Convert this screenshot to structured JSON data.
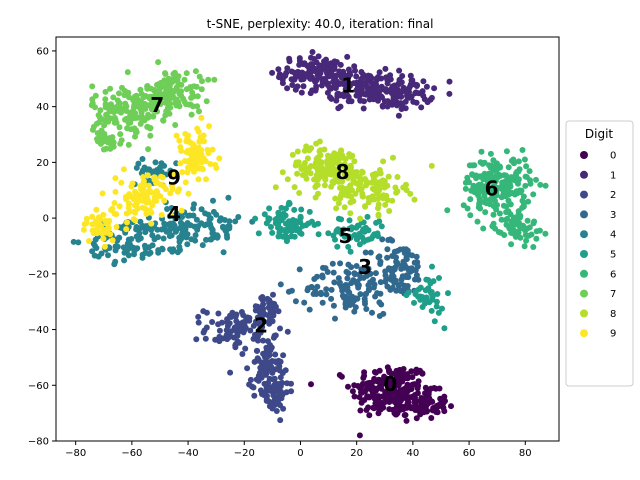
{
  "chart_data": {
    "type": "scatter",
    "title": "t-SNE, perplexity: 40.0, iteration: final",
    "xlabel": "",
    "ylabel": "",
    "xlim": [
      -87,
      92
    ],
    "ylim": [
      -80,
      65
    ],
    "x_ticks": [
      -80,
      -60,
      -40,
      -20,
      0,
      20,
      40,
      60,
      80
    ],
    "y_ticks": [
      -80,
      -60,
      -40,
      -20,
      0,
      20,
      40,
      60
    ],
    "grid": false,
    "legend": {
      "title": "Digit",
      "placement": "right"
    },
    "series": [
      {
        "name": "0",
        "color": "#440154",
        "clusters": [
          {
            "cx": 32,
            "cy": -62,
            "sx": 7,
            "sy": 5,
            "n": 200
          },
          {
            "cx": 44,
            "cy": -67,
            "sx": 4,
            "sy": 2.5,
            "n": 70
          }
        ]
      },
      {
        "name": "1",
        "color": "#482878",
        "clusters": [
          {
            "cx": 5,
            "cy": 52,
            "sx": 6,
            "sy": 3,
            "n": 120
          },
          {
            "cx": 20,
            "cy": 47,
            "sx": 7,
            "sy": 3,
            "n": 120
          },
          {
            "cx": 35,
            "cy": 45,
            "sx": 6,
            "sy": 3,
            "n": 100
          }
        ]
      },
      {
        "name": "2",
        "color": "#3e4989",
        "clusters": [
          {
            "cx": -22,
            "cy": -40,
            "sx": 6,
            "sy": 4,
            "n": 90
          },
          {
            "cx": -12,
            "cy": -33,
            "sx": 3,
            "sy": 2.5,
            "n": 40
          },
          {
            "cx": -12,
            "cy": -52,
            "sx": 3,
            "sy": 4,
            "n": 60
          },
          {
            "cx": -10,
            "cy": -62,
            "sx": 3,
            "sy": 4,
            "n": 70
          }
        ]
      },
      {
        "name": "3",
        "color": "#31688e",
        "clusters": [
          {
            "cx": 18,
            "cy": -25,
            "sx": 8,
            "sy": 5,
            "n": 120
          },
          {
            "cx": 35,
            "cy": -18,
            "sx": 5,
            "sy": 5,
            "n": 80
          }
        ]
      },
      {
        "name": "4",
        "color": "#26828e",
        "clusters": [
          {
            "cx": -62,
            "cy": -8,
            "sx": 7,
            "sy": 4,
            "n": 90
          },
          {
            "cx": -45,
            "cy": -3,
            "sx": 5,
            "sy": 4,
            "n": 80
          },
          {
            "cx": -30,
            "cy": -3,
            "sx": 4,
            "sy": 4,
            "n": 50
          },
          {
            "cx": -52,
            "cy": 17,
            "sx": 4,
            "sy": 2,
            "n": 30
          }
        ]
      },
      {
        "name": "5",
        "color": "#1f9e89",
        "clusters": [
          {
            "cx": -5,
            "cy": -2,
            "sx": 5,
            "sy": 3,
            "n": 80
          },
          {
            "cx": 20,
            "cy": -5,
            "sx": 5,
            "sy": 3,
            "n": 60
          },
          {
            "cx": 45,
            "cy": -28,
            "sx": 3,
            "sy": 4,
            "n": 40
          }
        ]
      },
      {
        "name": "6",
        "color": "#35b779",
        "clusters": [
          {
            "cx": 70,
            "cy": 12,
            "sx": 6,
            "sy": 5,
            "n": 200
          },
          {
            "cx": 77,
            "cy": -3,
            "sx": 4,
            "sy": 3,
            "n": 70
          }
        ]
      },
      {
        "name": "7",
        "color": "#6ece58",
        "clusters": [
          {
            "cx": -62,
            "cy": 38,
            "sx": 6,
            "sy": 5,
            "n": 150
          },
          {
            "cx": -45,
            "cy": 45,
            "sx": 5,
            "sy": 4,
            "n": 120
          },
          {
            "cx": -70,
            "cy": 28,
            "sx": 3,
            "sy": 2,
            "n": 30
          }
        ]
      },
      {
        "name": "8",
        "color": "#b5de2b",
        "clusters": [
          {
            "cx": 10,
            "cy": 18,
            "sx": 7,
            "sy": 4,
            "n": 150
          },
          {
            "cx": 25,
            "cy": 10,
            "sx": 6,
            "sy": 4,
            "n": 100
          }
        ]
      },
      {
        "name": "9",
        "color": "#fde725",
        "clusters": [
          {
            "cx": -38,
            "cy": 22,
            "sx": 4,
            "sy": 5,
            "n": 80
          },
          {
            "cx": -55,
            "cy": 8,
            "sx": 5,
            "sy": 4,
            "n": 100
          },
          {
            "cx": -70,
            "cy": -3,
            "sx": 5,
            "sy": 3,
            "n": 50
          }
        ]
      }
    ],
    "annotations": [
      {
        "text": "0",
        "x": 32,
        "y": -60
      },
      {
        "text": "1",
        "x": 17,
        "y": 47
      },
      {
        "text": "2",
        "x": -14,
        "y": -39
      },
      {
        "text": "3",
        "x": 23,
        "y": -18
      },
      {
        "text": "4",
        "x": -45,
        "y": 1
      },
      {
        "text": "5",
        "x": 16,
        "y": -7
      },
      {
        "text": "6",
        "x": 68,
        "y": 10
      },
      {
        "text": "7",
        "x": -51,
        "y": 40
      },
      {
        "text": "8",
        "x": 15,
        "y": 16
      },
      {
        "text": "9",
        "x": -45,
        "y": 14
      }
    ]
  }
}
